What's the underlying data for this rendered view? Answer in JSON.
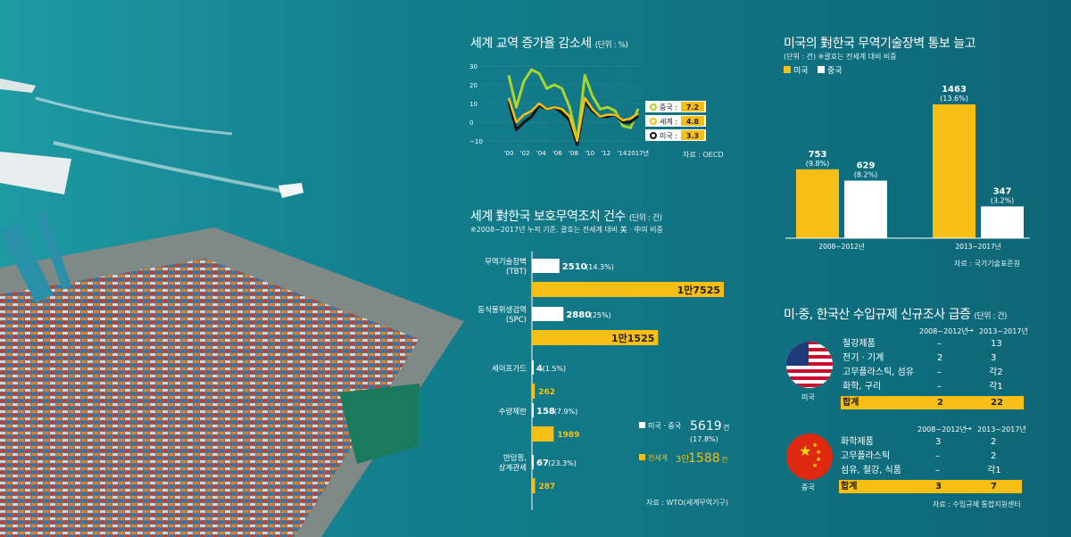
{
  "colors": {
    "yellow": "#f7be16",
    "white": "#ffffff",
    "sea": "#0f6f7f",
    "lime": "#a8d62c",
    "black": "#111111"
  },
  "chart_data": [
    {
      "type": "line",
      "title": "세계 교역 증가율 감소세",
      "unit": "(단위 : %)",
      "x_ticks": [
        "'00",
        "'02",
        "'04",
        "'06",
        "'08",
        "'10",
        "'12",
        "'14",
        "2017년"
      ],
      "y_ticks": [
        "30",
        "20",
        "10",
        "0",
        "−10"
      ],
      "ylim": [
        -10,
        30
      ],
      "x": [
        2000,
        2001,
        2002,
        2003,
        2004,
        2005,
        2006,
        2007,
        2008,
        2009,
        2010,
        2011,
        2012,
        2013,
        2014,
        2015,
        2016,
        2017
      ],
      "series": [
        {
          "name": "중국",
          "value_label": "7.2",
          "values": [
            25,
            8,
            22,
            28,
            26,
            18,
            20,
            18,
            8,
            -10,
            25,
            14,
            7,
            8,
            6,
            -2,
            -3,
            7.2
          ]
        },
        {
          "name": "세계",
          "value_label": "4.8",
          "values": [
            13,
            0,
            4,
            6,
            10,
            7,
            8,
            7,
            3,
            -10,
            13,
            7,
            3,
            4,
            4,
            1,
            2,
            4.8
          ]
        },
        {
          "name": "미국",
          "value_label": "3.3",
          "values": [
            11,
            -4,
            0,
            3,
            9,
            7,
            8,
            5,
            1,
            -12,
            11,
            6,
            3,
            3,
            4,
            0,
            0,
            3.3
          ]
        }
      ],
      "source": "자료 : OECD"
    },
    {
      "type": "bar",
      "title": "세계 對한국 보호무역조치 건수",
      "unit": "(단위 : 건)",
      "note": "※2008~2017년 누적 기준, 괄호는 전세계 대비 美 · 中의 비중",
      "categories": [
        "무역기술장벽\n(TBT)",
        "동식물위생검역\n(SPC)",
        "세이프가드",
        "수량제한",
        "반덤핑,\n상계관세"
      ],
      "series": [
        {
          "name": "미국 · 중국",
          "values": [
            2510,
            2880,
            4,
            158,
            67
          ],
          "labels": [
            "2510",
            "2880",
            "4",
            "158",
            "67"
          ],
          "shares": [
            "(14.3%)",
            "(25%)",
            "(1.5%)",
            "(7.9%)",
            "(23.3%)"
          ]
        },
        {
          "name": "전세계",
          "values": [
            17525,
            11525,
            262,
            1989,
            287
          ],
          "labels": [
            "1만7525",
            "1만1525",
            "262",
            "1989",
            "287"
          ]
        }
      ],
      "legend": [
        {
          "label": "미국 · 중국",
          "value": "5619",
          "unit": "건",
          "share": "(17.8%)"
        },
        {
          "label": "전세계",
          "value_prefix": "3만",
          "value": "1588",
          "unit": "건"
        }
      ],
      "source": "자료 : WTO(세계무역기구)"
    },
    {
      "type": "bar",
      "title": "미국의 對한국 무역기술장벽 통보 늘고",
      "unit": "(단위 : 건)",
      "note": "※괄호는 전세계 대비 비중",
      "categories": [
        "2008~2012년",
        "2013~2017년"
      ],
      "series": [
        {
          "name": "미국",
          "values": [
            753,
            1463
          ],
          "shares": [
            "(9.8%)",
            "(13.6%)"
          ]
        },
        {
          "name": "중국",
          "values": [
            629,
            347
          ],
          "shares": [
            "(8.2%)",
            "(3.2%)"
          ]
        }
      ],
      "source": "자료 : 국가기술표준원"
    },
    {
      "type": "table",
      "title": "미·중, 한국산 수입규제 신규조사 급증",
      "unit": "(단위 : 건)",
      "columns": [
        "2008~2012년",
        "2013~2017년"
      ],
      "groups": [
        {
          "country": "미국",
          "rows": [
            [
              "철강제품",
              "–",
              "13"
            ],
            [
              "전기 · 기계",
              "2",
              "3"
            ],
            [
              "고무플라스틱, 섬유",
              "–",
              "각2"
            ],
            [
              "화학, 구리",
              "–",
              "각1"
            ]
          ],
          "total": [
            "합계",
            "2",
            "22"
          ]
        },
        {
          "country": "중국",
          "rows": [
            [
              "화학제품",
              "3",
              "2"
            ],
            [
              "고무플라스틱",
              "–",
              "2"
            ],
            [
              "섬유, 철강, 식품",
              "–",
              "각1"
            ]
          ],
          "total": [
            "합계",
            "3",
            "7"
          ]
        }
      ],
      "source": "자료 : 수입규제 통합지원센터"
    }
  ]
}
